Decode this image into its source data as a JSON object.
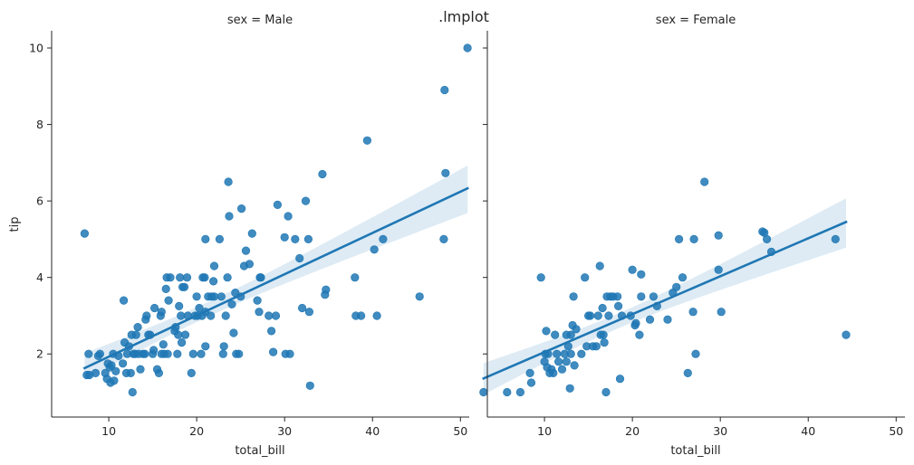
{
  "figure": {
    "suptitle": ".lmplot"
  },
  "chart_data": [
    {
      "type": "scatter",
      "title": "sex = Male",
      "xlabel": "total_bill",
      "ylabel": "tip",
      "xlim": [
        3.5,
        51
      ],
      "ylim": [
        0.35,
        10.45
      ],
      "xticks": [
        10,
        20,
        30,
        40,
        50
      ],
      "yticks": [
        2,
        4,
        6,
        8,
        10
      ],
      "grid": false,
      "point_color": "#1f77b4",
      "regression": {
        "x_range": [
          7.25,
          50.81
        ],
        "line": [
          [
            7.25,
            1.63
          ],
          [
            50.81,
            6.33
          ]
        ],
        "ci_band": true
      },
      "points": [
        [
          7.25,
          5.15
        ],
        [
          7.5,
          1.45
        ],
        [
          7.7,
          2.0
        ],
        [
          7.8,
          1.45
        ],
        [
          8.5,
          1.5
        ],
        [
          8.8,
          1.95
        ],
        [
          9.0,
          2.0
        ],
        [
          9.6,
          1.5
        ],
        [
          9.8,
          1.35
        ],
        [
          9.9,
          1.75
        ],
        [
          10.1,
          1.65
        ],
        [
          10.2,
          1.25
        ],
        [
          10.3,
          1.7
        ],
        [
          10.5,
          2.0
        ],
        [
          10.6,
          1.3
        ],
        [
          10.8,
          1.55
        ],
        [
          11.1,
          1.95
        ],
        [
          11.6,
          1.75
        ],
        [
          11.7,
          3.4
        ],
        [
          11.8,
          2.3
        ],
        [
          12.0,
          1.5
        ],
        [
          12.1,
          2.0
        ],
        [
          12.3,
          2.2
        ],
        [
          12.5,
          1.5
        ],
        [
          12.6,
          2.5
        ],
        [
          12.8,
          2.0
        ],
        [
          12.7,
          1.0
        ],
        [
          13.0,
          2.0
        ],
        [
          13.1,
          2.5
        ],
        [
          13.3,
          2.7
        ],
        [
          13.4,
          2.0
        ],
        [
          13.6,
          1.6
        ],
        [
          13.9,
          2.0
        ],
        [
          14.1,
          2.0
        ],
        [
          14.2,
          2.9
        ],
        [
          14.3,
          3.0
        ],
        [
          14.5,
          2.5
        ],
        [
          14.7,
          2.5
        ],
        [
          15.0,
          2.0
        ],
        [
          15.1,
          2.1
        ],
        [
          15.2,
          3.2
        ],
        [
          15.5,
          1.6
        ],
        [
          15.7,
          1.5
        ],
        [
          15.9,
          3.0
        ],
        [
          16.0,
          2.0
        ],
        [
          16.0,
          3.1
        ],
        [
          16.2,
          2.25
        ],
        [
          16.3,
          2.0
        ],
        [
          16.5,
          3.7
        ],
        [
          16.6,
          4.0
        ],
        [
          16.7,
          2.0
        ],
        [
          16.8,
          3.4
        ],
        [
          17.0,
          4.0
        ],
        [
          17.5,
          2.6
        ],
        [
          17.6,
          2.7
        ],
        [
          17.8,
          2.0
        ],
        [
          17.9,
          2.5
        ],
        [
          18.0,
          3.25
        ],
        [
          18.1,
          4.0
        ],
        [
          18.2,
          3.0
        ],
        [
          18.3,
          2.3
        ],
        [
          18.4,
          3.75
        ],
        [
          18.6,
          3.75
        ],
        [
          18.7,
          2.5
        ],
        [
          18.9,
          4.0
        ],
        [
          19.0,
          3.0
        ],
        [
          19.4,
          1.5
        ],
        [
          19.6,
          2.0
        ],
        [
          19.8,
          3.0
        ],
        [
          20.0,
          3.5
        ],
        [
          20.1,
          3.0
        ],
        [
          20.3,
          3.2
        ],
        [
          20.5,
          2.0
        ],
        [
          20.6,
          3.0
        ],
        [
          20.7,
          4.0
        ],
        [
          20.9,
          4.0
        ],
        [
          21.0,
          2.2
        ],
        [
          21.0,
          3.1
        ],
        [
          21.0,
          5.0
        ],
        [
          21.3,
          3.5
        ],
        [
          21.6,
          3.0
        ],
        [
          21.7,
          3.5
        ],
        [
          21.9,
          3.9
        ],
        [
          22.0,
          3.5
        ],
        [
          22.0,
          4.3
        ],
        [
          22.6,
          5.0
        ],
        [
          22.8,
          3.5
        ],
        [
          23.0,
          2.0
        ],
        [
          23.1,
          2.2
        ],
        [
          23.3,
          3.0
        ],
        [
          23.5,
          4.0
        ],
        [
          23.6,
          6.5
        ],
        [
          23.7,
          5.6
        ],
        [
          24.0,
          3.3
        ],
        [
          24.2,
          2.55
        ],
        [
          24.4,
          3.6
        ],
        [
          24.5,
          2.0
        ],
        [
          24.8,
          2.0
        ],
        [
          25.0,
          3.5
        ],
        [
          25.1,
          5.8
        ],
        [
          25.4,
          4.3
        ],
        [
          25.6,
          4.7
        ],
        [
          26.0,
          4.35
        ],
        [
          26.3,
          5.15
        ],
        [
          26.9,
          3.4
        ],
        [
          27.1,
          3.1
        ],
        [
          27.2,
          4.0
        ],
        [
          27.3,
          4.0
        ],
        [
          28.2,
          3.0
        ],
        [
          28.5,
          2.6
        ],
        [
          28.7,
          2.05
        ],
        [
          29.0,
          3.0
        ],
        [
          29.2,
          5.9
        ],
        [
          30.0,
          5.05
        ],
        [
          30.1,
          2.0
        ],
        [
          30.4,
          5.6
        ],
        [
          30.6,
          2.0
        ],
        [
          31.2,
          5.0
        ],
        [
          31.7,
          4.5
        ],
        [
          32.0,
          3.2
        ],
        [
          32.4,
          6.0
        ],
        [
          32.7,
          5.0
        ],
        [
          32.8,
          3.1
        ],
        [
          32.9,
          1.17
        ],
        [
          34.3,
          6.7
        ],
        [
          34.6,
          3.55
        ],
        [
          34.7,
          3.68
        ],
        [
          38.0,
          4.0
        ],
        [
          38.1,
          3.0
        ],
        [
          38.7,
          3.0
        ],
        [
          39.4,
          7.58
        ],
        [
          40.2,
          4.73
        ],
        [
          40.5,
          3.0
        ],
        [
          41.2,
          5.0
        ],
        [
          45.35,
          3.5
        ],
        [
          48.1,
          5.0
        ],
        [
          48.2,
          8.9
        ],
        [
          48.3,
          6.73
        ],
        [
          50.8,
          10.0
        ]
      ]
    },
    {
      "type": "scatter",
      "title": "sex = Female",
      "xlabel": "total_bill",
      "ylabel": "",
      "xlim": [
        3.5,
        51
      ],
      "ylim": [
        0.35,
        10.45
      ],
      "xticks": [
        10,
        20,
        30,
        40,
        50
      ],
      "yticks": [
        2,
        4,
        6,
        8,
        10
      ],
      "grid": false,
      "point_color": "#1f77b4",
      "regression": {
        "x_range": [
          3.07,
          44.3
        ],
        "line": [
          [
            3.07,
            1.36
          ],
          [
            44.3,
            5.45
          ]
        ],
        "ci_band": true
      },
      "points": [
        [
          3.07,
          1.0
        ],
        [
          5.75,
          1.0
        ],
        [
          7.25,
          1.0
        ],
        [
          8.35,
          1.5
        ],
        [
          8.5,
          1.25
        ],
        [
          9.6,
          4.0
        ],
        [
          10.0,
          1.8
        ],
        [
          10.1,
          2.0
        ],
        [
          10.2,
          2.6
        ],
        [
          10.3,
          1.65
        ],
        [
          10.4,
          2.0
        ],
        [
          10.6,
          1.5
        ],
        [
          10.8,
          1.6
        ],
        [
          11.0,
          1.5
        ],
        [
          11.2,
          2.5
        ],
        [
          11.4,
          2.0
        ],
        [
          11.6,
          1.8
        ],
        [
          12.0,
          1.6
        ],
        [
          12.3,
          2.0
        ],
        [
          12.5,
          1.8
        ],
        [
          12.5,
          2.5
        ],
        [
          12.7,
          2.2
        ],
        [
          12.9,
          1.1
        ],
        [
          13.0,
          2.0
        ],
        [
          13.0,
          2.5
        ],
        [
          13.2,
          2.75
        ],
        [
          13.3,
          3.5
        ],
        [
          13.4,
          1.7
        ],
        [
          13.6,
          2.65
        ],
        [
          14.2,
          2.0
        ],
        [
          14.6,
          4.0
        ],
        [
          14.8,
          2.2
        ],
        [
          15.0,
          3.0
        ],
        [
          15.2,
          3.0
        ],
        [
          15.5,
          2.2
        ],
        [
          15.9,
          2.2
        ],
        [
          16.1,
          3.0
        ],
        [
          16.3,
          4.3
        ],
        [
          16.4,
          2.5
        ],
        [
          16.6,
          3.2
        ],
        [
          16.7,
          2.5
        ],
        [
          16.8,
          2.3
        ],
        [
          17.0,
          1.0
        ],
        [
          17.1,
          3.5
        ],
        [
          17.3,
          3.0
        ],
        [
          17.5,
          3.5
        ],
        [
          17.8,
          3.5
        ],
        [
          18.3,
          3.5
        ],
        [
          18.4,
          3.25
        ],
        [
          18.6,
          1.35
        ],
        [
          18.8,
          3.0
        ],
        [
          19.8,
          3.0
        ],
        [
          20.0,
          4.2
        ],
        [
          20.3,
          2.75
        ],
        [
          20.4,
          2.8
        ],
        [
          20.8,
          2.5
        ],
        [
          21.0,
          3.5
        ],
        [
          21.0,
          4.08
        ],
        [
          22.0,
          2.9
        ],
        [
          22.4,
          3.5
        ],
        [
          22.8,
          3.25
        ],
        [
          24.0,
          2.9
        ],
        [
          24.6,
          3.6
        ],
        [
          25.0,
          3.75
        ],
        [
          25.3,
          5.0
        ],
        [
          25.7,
          4.0
        ],
        [
          26.3,
          1.5
        ],
        [
          26.9,
          3.1
        ],
        [
          27.0,
          5.0
        ],
        [
          27.2,
          2.0
        ],
        [
          28.2,
          6.5
        ],
        [
          29.8,
          4.2
        ],
        [
          29.8,
          5.1
        ],
        [
          30.1,
          3.1
        ],
        [
          34.8,
          5.2
        ],
        [
          35.0,
          5.17
        ],
        [
          35.3,
          5.0
        ],
        [
          35.8,
          4.67
        ],
        [
          43.1,
          5.0
        ],
        [
          44.3,
          2.5
        ]
      ]
    }
  ]
}
